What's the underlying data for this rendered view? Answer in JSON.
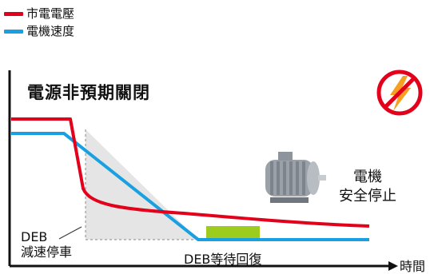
{
  "legend": [
    {
      "label": "市電電壓",
      "color": "#e3001b"
    },
    {
      "label": "電機速度",
      "color": "#1aa0e0"
    }
  ],
  "title": "電源非預期關閉",
  "deb_label": "DEB",
  "deb_decel_label": "減速停車",
  "deb_wait_label": "DEB等待回復",
  "motor_stop_line1": "電機",
  "motor_stop_line2": "安全停止",
  "time_axis_label": "時間",
  "icons": {
    "no_power": "no-lightning-icon",
    "motor": "motor-icon"
  },
  "colors": {
    "voltage": "#e3001b",
    "speed": "#1aa0e0",
    "wait_bar": "#9dcc1e",
    "shade": "#e5e5e5"
  }
}
